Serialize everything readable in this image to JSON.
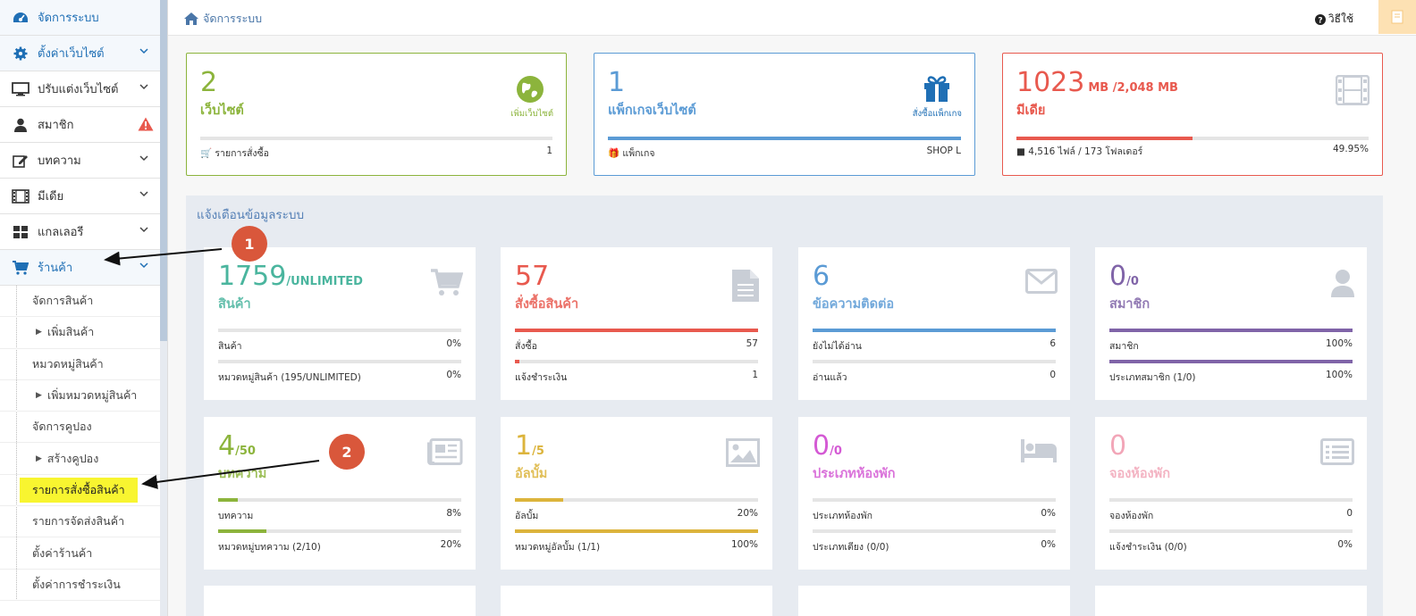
{
  "sidebar": {
    "items": [
      {
        "label": "จัดการระบบ",
        "icon": "dashboard-icon"
      },
      {
        "label": "ตั้งค่าเว็บไซต์",
        "icon": "gear-icon"
      },
      {
        "label": "ปรับแต่งเว็บไซต์",
        "icon": "monitor-icon"
      },
      {
        "label": "สมาชิก",
        "icon": "user-icon"
      },
      {
        "label": "บทความ",
        "icon": "edit-icon"
      },
      {
        "label": "มีเดีย",
        "icon": "film-icon"
      },
      {
        "label": "แกลเลอรี",
        "icon": "grid-icon"
      },
      {
        "label": "ร้านค้า",
        "icon": "cart-icon"
      }
    ],
    "sub": [
      "จัดการสินค้า",
      "เพิ่มสินค้า",
      "หมวดหมู่สินค้า",
      "เพิ่มหมวดหมู่สินค้า",
      "จัดการคูปอง",
      "สร้างคูปอง",
      "รายการสั่งซื้อสินค้า",
      "รายการจัดส่งสินค้า",
      "ตั้งค่าร้านค้า",
      "ตั้งค่าการชำระเงิน"
    ]
  },
  "topbar": {
    "breadcrumb": "จัดการระบบ",
    "howto": "วิธีใช้"
  },
  "topcards": [
    {
      "num": "2",
      "unit": "",
      "label": "เว็บไซต์",
      "action": "เพิ่มเว็บไซต์",
      "foot_label": "รายการสั่งซื้อ",
      "foot_value": "1",
      "color": "#8cb43c",
      "progress": 0
    },
    {
      "num": "1",
      "unit": "",
      "label": "แพ็กเกจเว็บไซต์",
      "action": "สั่งซื้อแพ็กเกจ",
      "foot_label": "แพ็กเกจ",
      "foot_value": "SHOP L",
      "color": "#5b9bd5",
      "progress": 100
    },
    {
      "num": "1023",
      "unit": "MB  /2,048 MB",
      "label": "มีเดีย",
      "action": "",
      "foot_label": "4,516 ไฟล์ / 173 โฟลเดอร์",
      "foot_value": "49.95%",
      "color": "#e8594e",
      "progress": 49.95
    }
  ],
  "panel": {
    "title": "แจ้งเตือนข้อมูลระบบ"
  },
  "cards": [
    {
      "num": "1759",
      "sub": "/UNLIMITED",
      "label": "สินค้า",
      "icon": "cart-icon",
      "color": "#4ab59e",
      "rows": [
        {
          "label": "สินค้า",
          "value": "0%",
          "progress": 0
        },
        {
          "label": "หมวดหมู่สินค้า (195/UNLIMITED)",
          "value": "0%",
          "progress": 0
        }
      ]
    },
    {
      "num": "57",
      "sub": "",
      "label": "สั่งซื้อสินค้า",
      "icon": "document-icon",
      "color": "#e8594e",
      "rows": [
        {
          "label": "สั่งซื้อ",
          "value": "57",
          "progress": 100
        },
        {
          "label": "แจ้งชำระเงิน",
          "value": "1",
          "progress": 2
        }
      ]
    },
    {
      "num": "6",
      "sub": "",
      "label": "ข้อความติดต่อ",
      "icon": "envelope-icon",
      "color": "#5b9bd5",
      "rows": [
        {
          "label": "ยังไม่ได้อ่าน",
          "value": "6",
          "progress": 100
        },
        {
          "label": "อ่านแล้ว",
          "value": "0",
          "progress": 0
        }
      ]
    },
    {
      "num": "0",
      "sub": "/0",
      "label": "สมาชิก",
      "icon": "user-icon",
      "color": "#8064a8",
      "rows": [
        {
          "label": "สมาชิก",
          "value": "100%",
          "progress": 100
        },
        {
          "label": "ประเภทสมาชิก (1/0)",
          "value": "100%",
          "progress": 100
        }
      ]
    },
    {
      "num": "4",
      "sub": "/50",
      "label": "บทความ",
      "icon": "newspaper-icon",
      "color": "#8cb43c",
      "rows": [
        {
          "label": "บทความ",
          "value": "8%",
          "progress": 8
        },
        {
          "label": "หมวดหมู่บทความ (2/10)",
          "value": "20%",
          "progress": 20
        }
      ]
    },
    {
      "num": "1",
      "sub": "/5",
      "label": "อัลบั้ม",
      "icon": "image-icon",
      "color": "#dcb43c",
      "rows": [
        {
          "label": "อัลบั้ม",
          "value": "20%",
          "progress": 20
        },
        {
          "label": "หมวดหมู่อัลบั้ม (1/1)",
          "value": "100%",
          "progress": 100
        }
      ]
    },
    {
      "num": "0",
      "sub": "/0",
      "label": "ประเภทห้องพัก",
      "icon": "bed-icon",
      "color": "#d45ad4",
      "rows": [
        {
          "label": "ประเภทห้องพัก",
          "value": "0%",
          "progress": 0
        },
        {
          "label": "ประเภทเตียง (0/0)",
          "value": "0%",
          "progress": 0
        }
      ]
    },
    {
      "num": "0",
      "sub": "",
      "label": "จองห้องพัก",
      "icon": "list-icon",
      "color": "#f2a6b8",
      "rows": [
        {
          "label": "จองห้องพัก",
          "value": "0",
          "progress": 0
        },
        {
          "label": "แจ้งชำระเงิน (0/0)",
          "value": "0%",
          "progress": 0
        }
      ]
    }
  ],
  "annotations": [
    "1",
    "2"
  ]
}
